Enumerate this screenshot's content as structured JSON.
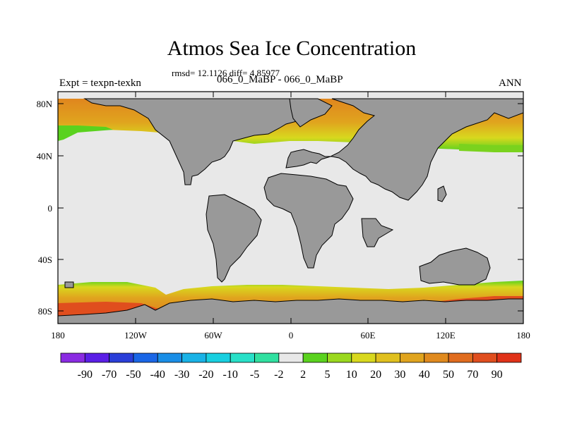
{
  "title": "Atmos Sea Ice Concentration",
  "subtitle": "rmsd= 12.1126 diff= 4.85977",
  "left_label": "Expt = texpn-texkn",
  "center_label": "066_0_MaBP - 066_0_MaBP",
  "right_label": "ANN",
  "colors": {
    "land": "#999999",
    "ocean": "#e8e8e8",
    "frame": "#000000"
  },
  "axes": {
    "lat_ticks": [
      "80N",
      "40N",
      "0",
      "40S",
      "80S"
    ],
    "lon_ticks": [
      "180",
      "120W",
      "60W",
      "0",
      "60E",
      "120E",
      "180"
    ]
  },
  "colorbar": {
    "labels": [
      "-90",
      "-70",
      "-50",
      "-40",
      "-30",
      "-20",
      "-10",
      "-5",
      "-2",
      "2",
      "5",
      "10",
      "20",
      "30",
      "40",
      "50",
      "70",
      "90"
    ],
    "colors": [
      "#8a2be2",
      "#5a1ee6",
      "#2a3ed8",
      "#1a66e6",
      "#1a8ee6",
      "#19b2e6",
      "#18cfe0",
      "#28e0c8",
      "#30e0a0",
      "#e8e8e8",
      "#5ad21e",
      "#9ad81e",
      "#d8d81e",
      "#e0c01e",
      "#e0a41e",
      "#e08a1e",
      "#e06c1e",
      "#e04e1e",
      "#e03218"
    ]
  }
}
